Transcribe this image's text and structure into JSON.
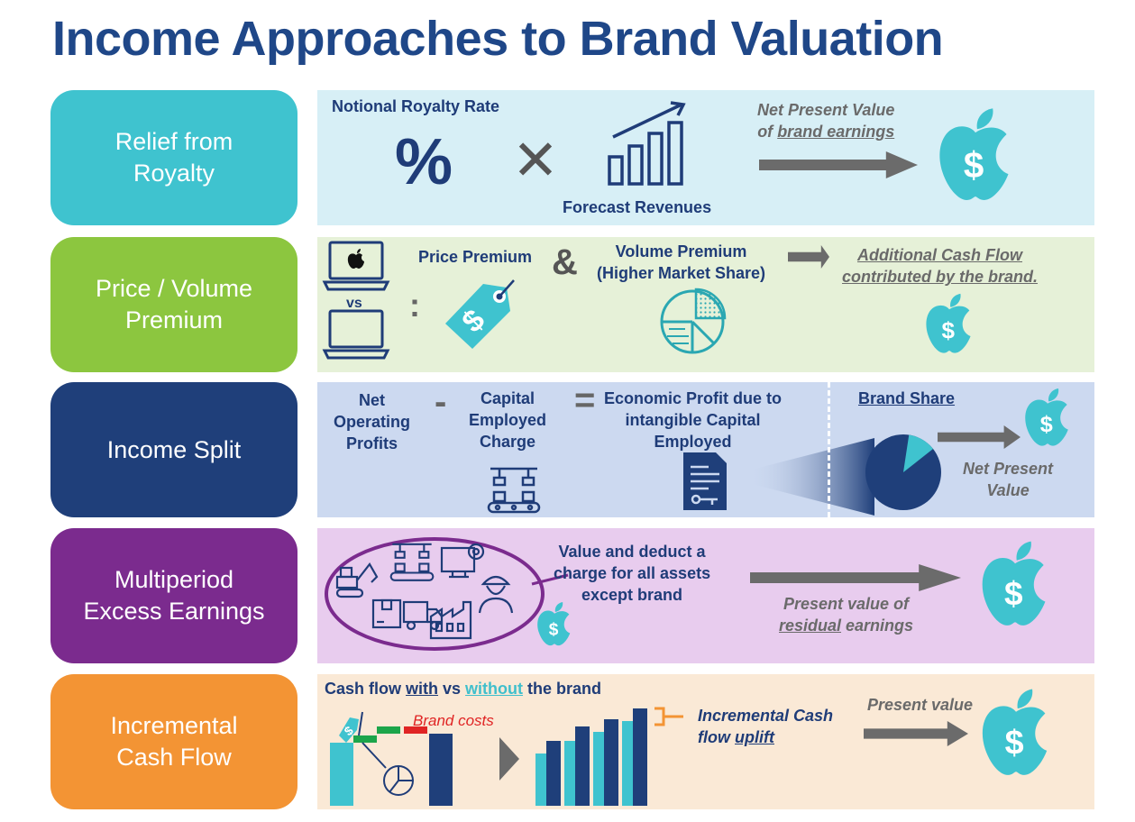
{
  "title": "Income Approaches to Brand Valuation",
  "colors": {
    "title": "#1f4788",
    "teal": "#3fc3cf",
    "green": "#8cc63f",
    "navy": "#1f3f7a",
    "purple": "#7b2b8e",
    "orange": "#f39434",
    "arrow": "#6b6b6b"
  },
  "rows": [
    {
      "label": "Relief from\nRoyalty",
      "color": "#3fc3cf"
    },
    {
      "label": "Price / Volume\nPremium",
      "color": "#8cc63f"
    },
    {
      "label": "Income Split",
      "color": "#1f3f7a"
    },
    {
      "label": "Multiperiod\nExcess Earnings",
      "color": "#7b2b8e"
    },
    {
      "label": "Incremental\nCash Flow",
      "color": "#f39434"
    }
  ],
  "royalty": {
    "rate_label": "Notional Royalty Rate",
    "percent_symbol": "%",
    "times_symbol": "✕",
    "revenues_label": "Forecast Revenues",
    "npv_line1": "Net Present Value",
    "npv_line2_prefix": "of ",
    "npv_line2_underlined": "brand earnings"
  },
  "premium": {
    "vs_label": "vs",
    "colon": ":",
    "price_label": "Price Premium",
    "amp": "&",
    "volume_label": "Volume Premium\n(Higher Market Share)",
    "cash_flow_label": "Additional Cash Flow\ncontributed by the brand."
  },
  "split": {
    "minus": "-",
    "equals": "=",
    "net_op_label": "Net\nOperating\nProfits",
    "capital_label": "Capital\nEmployed\nCharge",
    "econ_label": "Economic Profit due to\nintangible Capital\nEmployed",
    "brand_share_label": "Brand Share",
    "brand_share_fraction": 0.12,
    "npv_label": "Net Present\nValue"
  },
  "mpee": {
    "deduct_label": "Value and deduct a\ncharge for all assets\nexcept brand",
    "pv_line1": "Present value of",
    "pv_underlined": "residual",
    "pv_rest": " earnings"
  },
  "icf": {
    "title_1": "Cash flow ",
    "title_with": "with",
    "title_vs": " vs ",
    "title_without": "without",
    "title_end": " the brand",
    "brand_costs": "Brand costs",
    "incremental_line1": "Incremental Cash",
    "incremental_line2_prefix": "flow ",
    "incremental_line2_underlined": "uplift",
    "pv_label": "Present value"
  },
  "icons": [
    "percent-icon",
    "bar-growth-icon",
    "apple-dollar-icon",
    "laptop-icon",
    "price-tag-icon",
    "pie-chart-icon",
    "conveyor-icon",
    "document-icon",
    "factory-icon",
    "worker-icon",
    "truck-icon"
  ]
}
